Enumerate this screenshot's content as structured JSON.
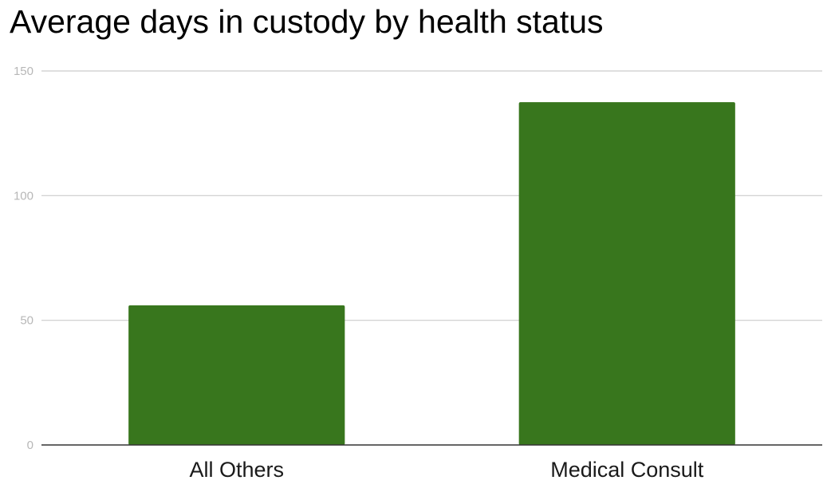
{
  "chart_data": {
    "type": "bar",
    "title": "Average days in custody by health status",
    "categories": [
      "All Others",
      "Medical Consult"
    ],
    "values": [
      56,
      137.5
    ],
    "ylim": [
      0,
      150
    ],
    "yticks": [
      0,
      50,
      100,
      150
    ],
    "xlabel": "",
    "ylabel": "",
    "grid": true,
    "legend": "none",
    "bar_color": "#38761d",
    "gridline_color": "#cccccc",
    "axis_color": "#333333"
  }
}
